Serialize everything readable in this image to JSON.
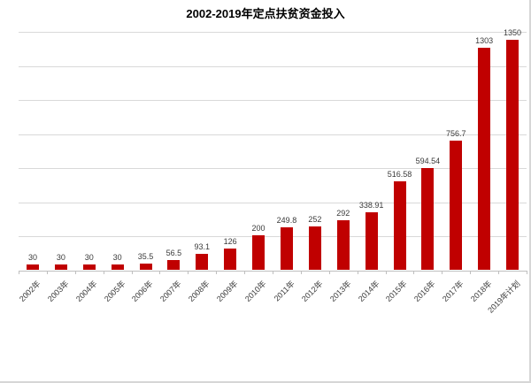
{
  "title": "2002-2019年定点扶贫资金投入",
  "colors": {
    "bar": "#c00000",
    "gridline": "#d9d9d9",
    "axis": "#bfbfbf",
    "data_label": "#3a3a3a",
    "title": "#000000",
    "canvas_border": "#d6d6d6"
  },
  "chart_data": {
    "type": "bar",
    "title": "2002-2019年定点扶贫资金投入",
    "categories": [
      "2002年",
      "2003年",
      "2004年",
      "2005年",
      "2006年",
      "2007年",
      "2008年",
      "2009年",
      "2010年",
      "2011年",
      "2012年",
      "2013年",
      "2014年",
      "2015年",
      "2016年",
      "2017年",
      "2018年",
      "2019年计划"
    ],
    "values": [
      30,
      30,
      30,
      30,
      35.5,
      56.5,
      93.1,
      126,
      200,
      249.8,
      252,
      292,
      338.91,
      516.58,
      594.54,
      756.7,
      1303,
      1350
    ],
    "data_labels": [
      "30",
      "30",
      "30",
      "30",
      "35.5",
      "56.5",
      "93.1",
      "126",
      "200",
      "249.8",
      "252",
      "292",
      "338.91",
      "516.58",
      "594.54",
      "756.7",
      "1303",
      "1350"
    ],
    "xlabel": "",
    "ylabel": "",
    "ylim": [
      0,
      1400
    ],
    "gridline_interval": 200,
    "grid": true,
    "legend": false,
    "y_axis_tick_labels_visible": false,
    "bar_color": "#c00000",
    "data_labels_position": "above-bar",
    "x_label_rotation_deg": -45
  }
}
